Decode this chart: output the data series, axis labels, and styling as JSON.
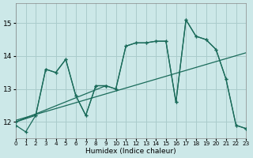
{
  "xlabel": "Humidex (Indice chaleur)",
  "bg_color": "#cce8e8",
  "grid_color": "#aacccc",
  "line_color": "#1a6b5a",
  "xlim": [
    0,
    23
  ],
  "ylim": [
    11.5,
    15.6
  ],
  "yticks": [
    12,
    13,
    14,
    15
  ],
  "xticks": [
    0,
    1,
    2,
    3,
    4,
    5,
    6,
    7,
    8,
    9,
    10,
    11,
    12,
    13,
    14,
    15,
    16,
    17,
    18,
    19,
    20,
    21,
    22,
    23
  ],
  "curves": [
    {
      "x": [
        0,
        1,
        2,
        3,
        4,
        5,
        6,
        7,
        8,
        9,
        10,
        11,
        12,
        13,
        14,
        15,
        16,
        17,
        18,
        19,
        20,
        21,
        22,
        23
      ],
      "y": [
        11.9,
        11.7,
        12.2,
        13.6,
        13.5,
        13.9,
        12.8,
        12.2,
        13.1,
        13.1,
        13.0,
        14.3,
        14.4,
        14.4,
        14.45,
        14.45,
        12.6,
        15.1,
        14.6,
        14.5,
        14.2,
        13.3,
        11.9,
        11.8
      ],
      "marker": true
    },
    {
      "x": [
        0,
        9,
        10,
        11,
        12,
        13,
        14,
        15,
        16,
        17,
        18,
        19,
        20,
        21,
        22,
        23
      ],
      "y": [
        12.0,
        13.1,
        13.0,
        14.3,
        14.4,
        14.4,
        14.45,
        14.45,
        12.6,
        15.1,
        14.6,
        14.5,
        14.2,
        13.3,
        11.9,
        11.8
      ],
      "marker": true
    },
    {
      "x": [
        0,
        2,
        3,
        4,
        5,
        6,
        7,
        8,
        9
      ],
      "y": [
        12.0,
        12.2,
        13.6,
        13.5,
        13.9,
        12.8,
        12.2,
        13.1,
        13.1
      ],
      "marker": true
    },
    {
      "x": [
        0,
        23
      ],
      "y": [
        12.05,
        14.1
      ],
      "marker": false
    }
  ]
}
